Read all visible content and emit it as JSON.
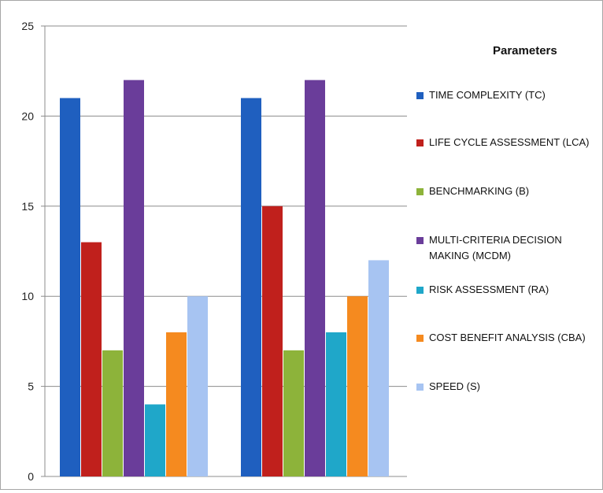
{
  "chart_data": {
    "type": "bar",
    "categories": [
      "",
      ""
    ],
    "ylim": [
      0,
      25
    ],
    "yticks": [
      0,
      5,
      10,
      15,
      20,
      25
    ],
    "grid": true,
    "legend_title": "Parameters",
    "legend_position": "right",
    "series": [
      {
        "name": "TIME COMPLEXITY (TC)",
        "color": "#1f5fbf",
        "values": [
          21,
          21
        ]
      },
      {
        "name": "LIFE CYCLE ASSESSMENT (LCA)",
        "color": "#c0201c",
        "values": [
          13,
          15
        ]
      },
      {
        "name": "BENCHMARKING (B)",
        "color": "#8db33a",
        "values": [
          7,
          7
        ]
      },
      {
        "name": "MULTI-CRITERIA DECISION MAKING (MCDM)",
        "color": "#6a3d9a",
        "values": [
          22,
          22
        ]
      },
      {
        "name": "RISK ASSESSMENT (RA)",
        "color": "#1fa7c9",
        "values": [
          4,
          8
        ]
      },
      {
        "name": "COST BENEFIT ANALYSIS (CBA)",
        "color": "#f58a1f",
        "values": [
          8,
          10
        ]
      },
      {
        "name": "SPEED (S)",
        "color": "#a7c4f2",
        "values": [
          10,
          12
        ]
      }
    ]
  }
}
